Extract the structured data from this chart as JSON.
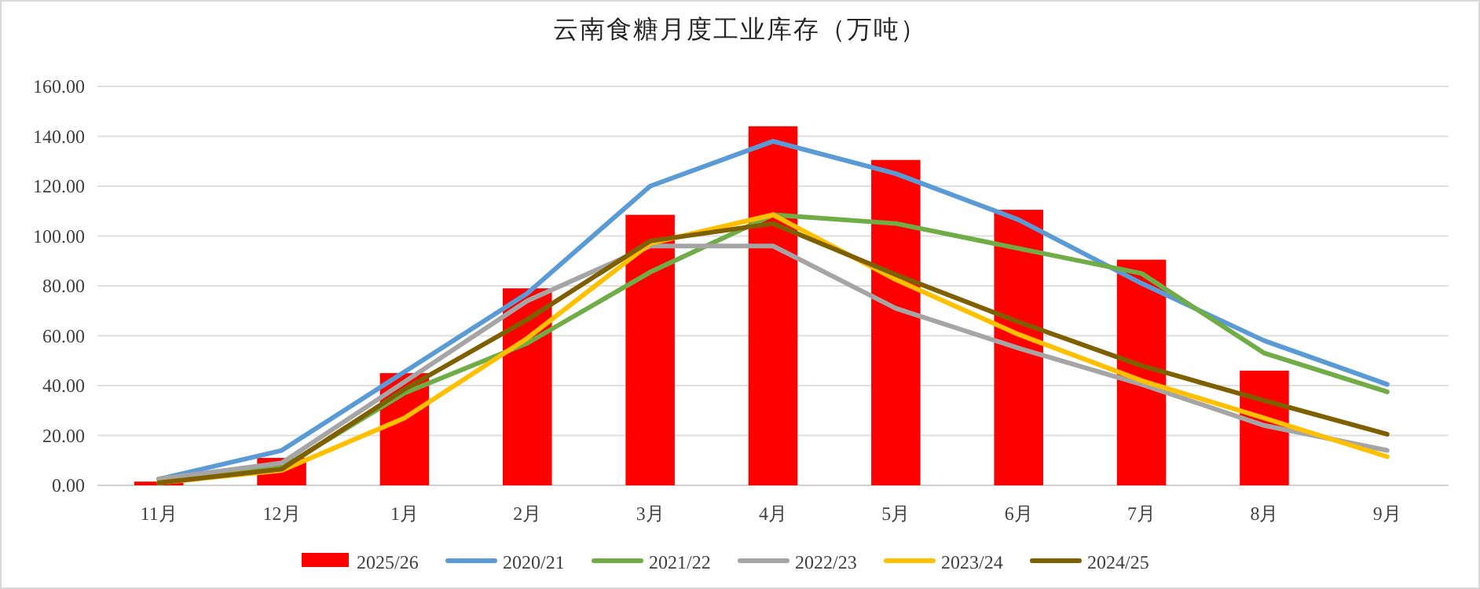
{
  "chart_data": {
    "type": "bar",
    "title": "云南食糖月度工业库存（万吨）",
    "categories": [
      "11月",
      "12月",
      "1月",
      "2月",
      "3月",
      "4月",
      "5月",
      "6月",
      "7月",
      "8月",
      "9月"
    ],
    "series": [
      {
        "name": "2025/26",
        "color": "#ff0000",
        "values": [
          1.5,
          11,
          45,
          79,
          108.5,
          144,
          130.5,
          110.5,
          90.5,
          46,
          null
        ]
      },
      {
        "name": "2020/21",
        "type": "line",
        "color": "#5b9bd5",
        "values": [
          2.5,
          14,
          45.5,
          77,
          120,
          138,
          125,
          106.5,
          81,
          58,
          40.5
        ]
      },
      {
        "name": "2021/22",
        "type": "line",
        "color": "#70ad47",
        "values": [
          2.5,
          7,
          37,
          57,
          85.5,
          108.5,
          105,
          95,
          85,
          53,
          37.5
        ]
      },
      {
        "name": "2022/23",
        "type": "line",
        "color": "#a5a5a5",
        "values": [
          2.5,
          9,
          41.5,
          74,
          96,
          96,
          71,
          55,
          40.5,
          24,
          14
        ]
      },
      {
        "name": "2023/24",
        "type": "line",
        "color": "#ffc000",
        "values": [
          1,
          6,
          27,
          59,
          97,
          108.5,
          82.5,
          60.5,
          42,
          27,
          11.5
        ]
      },
      {
        "name": "2024/25",
        "type": "line",
        "color": "#7f6000",
        "values": [
          1,
          6.5,
          38.5,
          66.5,
          98,
          105,
          84.5,
          65.5,
          48,
          34,
          20.5
        ]
      }
    ],
    "ylim": [
      0,
      160
    ],
    "yticks": [
      {
        "value": 0,
        "label": "0.00"
      },
      {
        "value": 20,
        "label": "20.00"
      },
      {
        "value": 40,
        "label": "40.00"
      },
      {
        "value": 60,
        "label": "60.00"
      },
      {
        "value": 80,
        "label": "80.00"
      },
      {
        "value": 100,
        "label": "100.00"
      },
      {
        "value": 120,
        "label": "120.00"
      },
      {
        "value": 140,
        "label": "140.00"
      },
      {
        "value": 160,
        "label": "160.00"
      }
    ],
    "grid": "y",
    "legend": "bottom"
  }
}
